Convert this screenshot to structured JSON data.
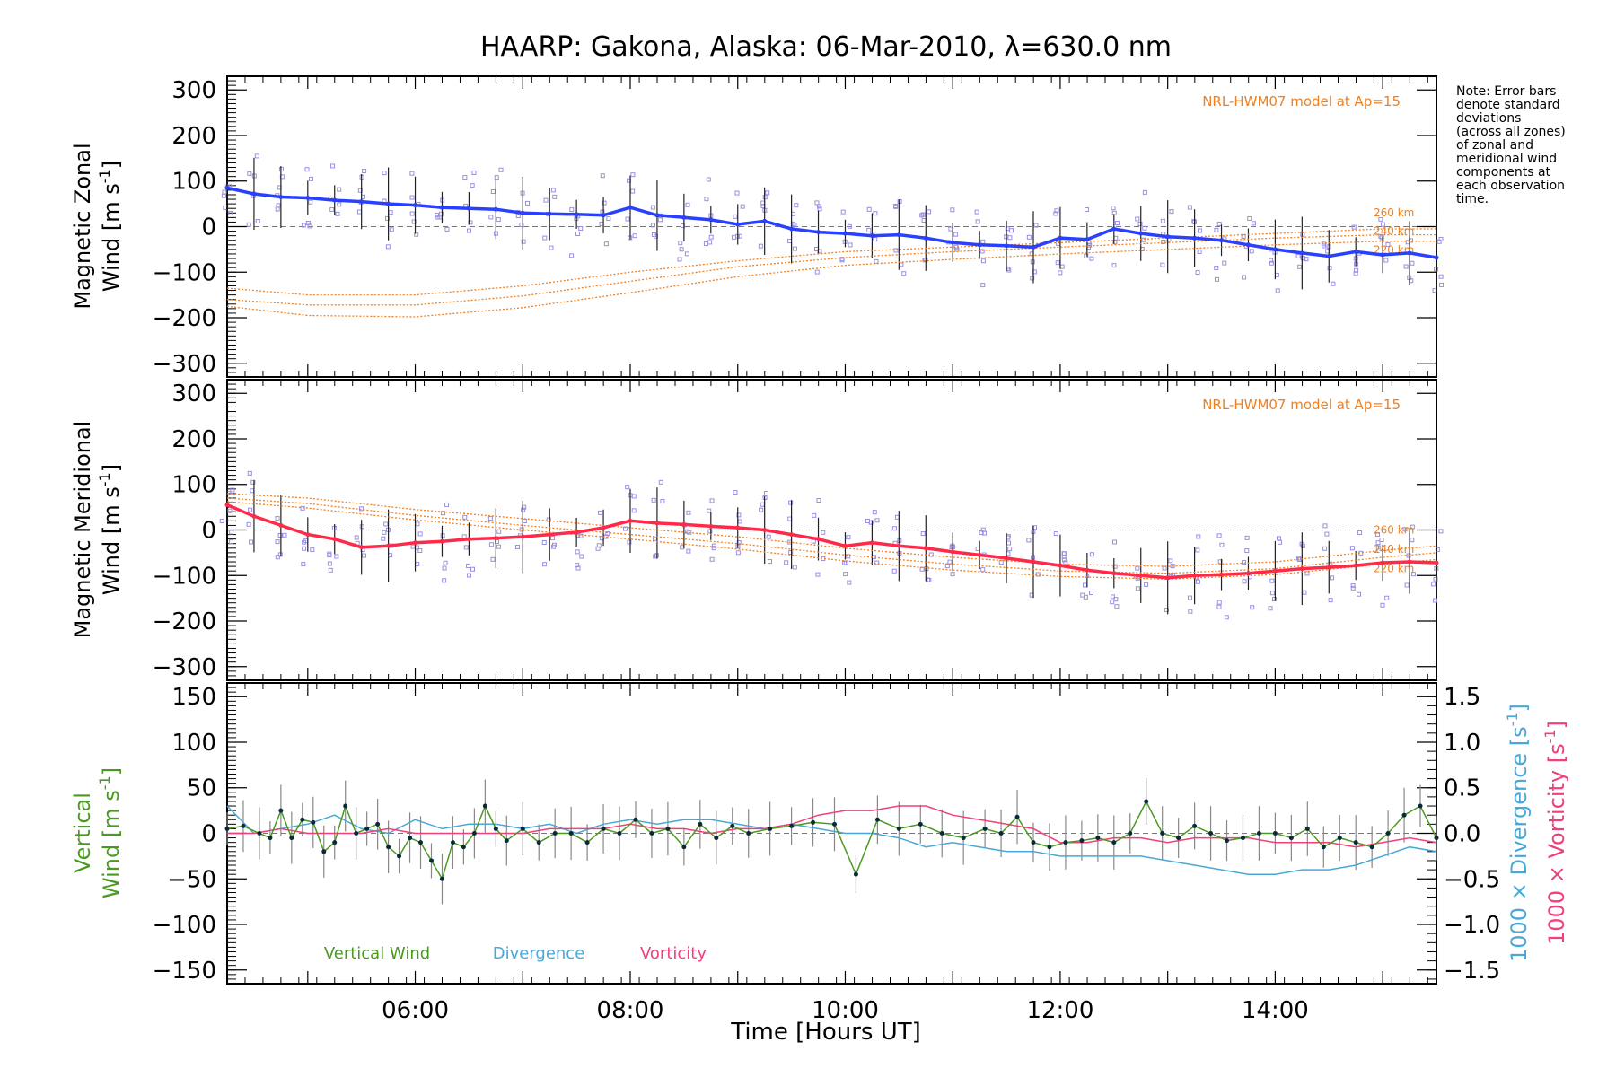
{
  "title": "HAARP: Gakona,  Alaska: 06-Mar-2010, λ=630.0 nm",
  "xlabel": "Time [Hours UT]",
  "note_lines": [
    "Note: Error bars",
    "denote standard",
    "deviations",
    "(across all zones)",
    "of zonal and",
    "meridional wind",
    "components at",
    "each observation",
    "time."
  ],
  "colors": {
    "zonal_line": "#2a40ff",
    "meridional_line": "#ff2a4a",
    "vertical": "#4a9a20",
    "divergence": "#4aa8d8",
    "vorticity": "#f0407a",
    "model": "#f08020",
    "scatter": "#9890e0"
  },
  "chart_data": [
    {
      "type": "line",
      "panel": "zonal",
      "ylabel_line1": "Magnetic Zonal",
      "ylabel_line2": "Wind [m s",
      "ylabel_sup": "-1",
      "ylabel_close": "]",
      "model_label": "NRL-HWM07 model at Ap=15",
      "altitude_labels": [
        "260 km",
        "240 km",
        "220 km"
      ],
      "xlim": [
        4.25,
        15.5
      ],
      "ylim": [
        -330,
        330
      ],
      "yticks": [
        -300,
        -200,
        -100,
        0,
        100,
        200,
        300
      ],
      "series": [
        {
          "kind": "mean",
          "x": [
            4.25,
            4.5,
            4.75,
            5.0,
            5.25,
            5.5,
            5.75,
            6.0,
            6.25,
            6.5,
            6.75,
            7.0,
            7.25,
            7.5,
            7.75,
            8.0,
            8.25,
            8.5,
            8.75,
            9.0,
            9.25,
            9.5,
            9.75,
            10.0,
            10.25,
            10.5,
            10.75,
            11.0,
            11.25,
            11.5,
            11.75,
            12.0,
            12.25,
            12.5,
            12.75,
            13.0,
            13.25,
            13.5,
            13.75,
            14.0,
            14.25,
            14.5,
            14.75,
            15.0,
            15.25,
            15.5
          ],
          "values": [
            85,
            72,
            65,
            63,
            58,
            55,
            50,
            47,
            42,
            40,
            38,
            30,
            28,
            27,
            25,
            42,
            25,
            20,
            15,
            5,
            12,
            -5,
            -12,
            -15,
            -20,
            -18,
            -25,
            -35,
            -40,
            -42,
            -45,
            -25,
            -28,
            -5,
            -15,
            -22,
            -25,
            -30,
            -40,
            -50,
            -58,
            -65,
            -55,
            -62,
            -58,
            -68
          ]
        },
        {
          "kind": "model",
          "label": "260 km",
          "x": [
            4.25,
            5.0,
            6.0,
            7.0,
            8.0,
            9.0,
            10.0,
            11.0,
            12.0,
            13.0,
            14.0,
            15.0,
            15.5
          ],
          "values": [
            -135,
            -150,
            -150,
            -130,
            -100,
            -75,
            -55,
            -45,
            -35,
            -25,
            -15,
            -5,
            -5
          ]
        },
        {
          "kind": "model",
          "label": "240 km",
          "x": [
            4.25,
            5.0,
            6.0,
            7.0,
            8.0,
            9.0,
            10.0,
            11.0,
            12.0,
            13.0,
            14.0,
            15.0,
            15.5
          ],
          "values": [
            -160,
            -172,
            -172,
            -152,
            -120,
            -88,
            -68,
            -55,
            -45,
            -35,
            -25,
            -18,
            -18
          ]
        },
        {
          "kind": "model",
          "label": "220 km",
          "x": [
            4.25,
            5.0,
            6.0,
            7.0,
            8.0,
            9.0,
            10.0,
            11.0,
            12.0,
            13.0,
            14.0,
            15.0,
            15.5
          ],
          "values": [
            -175,
            -195,
            -198,
            -178,
            -145,
            -110,
            -85,
            -72,
            -60,
            -50,
            -40,
            -32,
            -32
          ]
        }
      ]
    },
    {
      "type": "line",
      "panel": "meridional",
      "ylabel_line1": "Magnetic Meridional",
      "ylabel_line2": "Wind [m s",
      "ylabel_sup": "-1",
      "ylabel_close": "]",
      "model_label": "NRL-HWM07 model at Ap=15",
      "altitude_labels": [
        "260 km",
        "240 km",
        "220 km"
      ],
      "xlim": [
        4.25,
        15.5
      ],
      "ylim": [
        -330,
        330
      ],
      "yticks": [
        -300,
        -200,
        -100,
        0,
        100,
        200,
        300
      ],
      "series": [
        {
          "kind": "mean",
          "x": [
            4.25,
            4.5,
            4.75,
            5.0,
            5.25,
            5.5,
            5.75,
            6.0,
            6.25,
            6.5,
            6.75,
            7.0,
            7.25,
            7.5,
            7.75,
            8.0,
            8.25,
            8.5,
            8.75,
            9.0,
            9.25,
            9.5,
            9.75,
            10.0,
            10.25,
            10.5,
            10.75,
            11.0,
            11.25,
            11.5,
            11.75,
            12.0,
            12.25,
            12.5,
            12.75,
            13.0,
            13.25,
            13.5,
            13.75,
            14.0,
            14.25,
            14.5,
            14.75,
            15.0,
            15.25,
            15.5
          ],
          "values": [
            55,
            30,
            10,
            -10,
            -20,
            -38,
            -35,
            -28,
            -25,
            -20,
            -18,
            -15,
            -10,
            -5,
            5,
            20,
            15,
            12,
            8,
            5,
            0,
            -10,
            -20,
            -35,
            -28,
            -35,
            -40,
            -48,
            -55,
            -62,
            -70,
            -78,
            -88,
            -95,
            -100,
            -105,
            -100,
            -98,
            -95,
            -90,
            -85,
            -82,
            -78,
            -72,
            -70,
            -72
          ]
        },
        {
          "kind": "model",
          "label": "260 km",
          "x": [
            4.25,
            5.0,
            6.0,
            7.0,
            8.0,
            9.0,
            10.0,
            11.0,
            12.0,
            13.0,
            14.0,
            15.0,
            15.5
          ],
          "values": [
            80,
            70,
            45,
            25,
            5,
            -15,
            -40,
            -60,
            -75,
            -80,
            -70,
            -45,
            -35
          ]
        },
        {
          "kind": "model",
          "label": "240 km",
          "x": [
            4.25,
            5.0,
            6.0,
            7.0,
            8.0,
            9.0,
            10.0,
            11.0,
            12.0,
            13.0,
            14.0,
            15.0,
            15.5
          ],
          "values": [
            70,
            58,
            32,
            10,
            -10,
            -30,
            -55,
            -75,
            -90,
            -95,
            -85,
            -60,
            -50
          ]
        },
        {
          "kind": "model",
          "label": "220 km",
          "x": [
            4.25,
            5.0,
            6.0,
            7.0,
            8.0,
            9.0,
            10.0,
            11.0,
            12.0,
            13.0,
            14.0,
            15.0,
            15.5
          ],
          "values": [
            62,
            48,
            22,
            0,
            -20,
            -42,
            -68,
            -88,
            -102,
            -108,
            -98,
            -75,
            -65
          ]
        }
      ]
    },
    {
      "type": "line",
      "panel": "vertical",
      "ylabel_line1": "Vertical",
      "ylabel_line2": "Wind [m s",
      "ylabel_sup": "-1",
      "ylabel_close": "]",
      "y2label_divergence": "1000 × Divergence [s",
      "y2label_vorticity": "1000 × Vorticity [s",
      "y2label_sup": "-1",
      "y2label_close": "]",
      "legend": [
        "Vertical Wind",
        "Divergence",
        "Vorticity"
      ],
      "xticks": [
        "06:00",
        "08:00",
        "10:00",
        "12:00",
        "14:00"
      ],
      "xtick_values": [
        6,
        8,
        10,
        12,
        14
      ],
      "xlim": [
        4.25,
        15.5
      ],
      "ylim": [
        -165,
        165
      ],
      "yticks": [
        -150,
        -100,
        -50,
        0,
        50,
        100,
        150
      ],
      "y2lim": [
        -1.65,
        1.65
      ],
      "y2ticks": [
        -1.5,
        -1.0,
        -0.5,
        0.0,
        0.5,
        1.0,
        1.5
      ],
      "y2ticklabels": [
        "−1.5",
        "−1.0",
        "−0.5",
        "0.0",
        "0.5",
        "1.0",
        "1.5"
      ],
      "series": [
        {
          "name": "Vertical Wind",
          "x": [
            4.25,
            4.4,
            4.55,
            4.65,
            4.75,
            4.85,
            4.95,
            5.05,
            5.15,
            5.25,
            5.35,
            5.45,
            5.55,
            5.65,
            5.75,
            5.85,
            5.95,
            6.05,
            6.15,
            6.25,
            6.35,
            6.45,
            6.55,
            6.65,
            6.75,
            6.85,
            7.0,
            7.15,
            7.3,
            7.45,
            7.6,
            7.75,
            7.9,
            8.05,
            8.2,
            8.35,
            8.5,
            8.65,
            8.8,
            8.95,
            9.1,
            9.3,
            9.5,
            9.7,
            9.9,
            10.1,
            10.3,
            10.5,
            10.7,
            10.9,
            11.1,
            11.3,
            11.45,
            11.6,
            11.75,
            11.9,
            12.05,
            12.2,
            12.35,
            12.5,
            12.65,
            12.8,
            12.95,
            13.1,
            13.25,
            13.4,
            13.55,
            13.7,
            13.85,
            14.0,
            14.15,
            14.3,
            14.45,
            14.6,
            14.75,
            14.9,
            15.05,
            15.2,
            15.35,
            15.5
          ],
          "values": [
            5,
            8,
            0,
            -5,
            25,
            -5,
            15,
            12,
            -20,
            -10,
            30,
            0,
            5,
            10,
            -15,
            -25,
            -5,
            -10,
            -30,
            -50,
            -10,
            -15,
            0,
            30,
            5,
            -8,
            5,
            -10,
            0,
            0,
            -10,
            5,
            0,
            15,
            0,
            5,
            -15,
            10,
            -5,
            8,
            0,
            5,
            8,
            12,
            10,
            -45,
            15,
            5,
            10,
            0,
            -5,
            5,
            0,
            18,
            -10,
            -15,
            -10,
            -8,
            -5,
            -10,
            0,
            35,
            0,
            -5,
            8,
            0,
            -8,
            -5,
            0,
            0,
            -5,
            5,
            -15,
            -5,
            -10,
            -15,
            0,
            20,
            30,
            -5
          ]
        },
        {
          "name": "Divergence",
          "x": [
            4.25,
            4.5,
            4.75,
            5.0,
            5.25,
            5.5,
            5.75,
            6.0,
            6.25,
            6.5,
            6.75,
            7.0,
            7.25,
            7.5,
            7.75,
            8.0,
            8.25,
            8.5,
            8.75,
            9.0,
            9.25,
            9.5,
            9.75,
            10.0,
            10.25,
            10.5,
            10.75,
            11.0,
            11.25,
            11.5,
            11.75,
            12.0,
            12.25,
            12.5,
            12.75,
            13.0,
            13.25,
            13.5,
            13.75,
            14.0,
            14.25,
            14.5,
            14.75,
            15.0,
            15.25,
            15.5
          ],
          "values": [
            0.3,
            0.0,
            0.05,
            0.1,
            0.2,
            0.05,
            0.0,
            0.15,
            0.05,
            0.1,
            0.1,
            0.05,
            0.1,
            0.0,
            0.1,
            0.15,
            0.1,
            0.15,
            0.15,
            0.1,
            0.05,
            0.1,
            0.05,
            0.0,
            0.0,
            -0.05,
            -0.15,
            -0.1,
            -0.15,
            -0.2,
            -0.2,
            -0.25,
            -0.25,
            -0.25,
            -0.25,
            -0.3,
            -0.35,
            -0.4,
            -0.45,
            -0.45,
            -0.4,
            -0.4,
            -0.35,
            -0.25,
            -0.15,
            -0.2
          ]
        },
        {
          "name": "Vorticity",
          "x": [
            4.25,
            4.5,
            4.75,
            5.0,
            5.25,
            5.5,
            5.75,
            6.0,
            6.25,
            6.5,
            6.75,
            7.0,
            7.25,
            7.5,
            7.75,
            8.0,
            8.25,
            8.5,
            8.75,
            9.0,
            9.25,
            9.5,
            9.75,
            10.0,
            10.25,
            10.5,
            10.75,
            11.0,
            11.25,
            11.5,
            11.75,
            12.0,
            12.25,
            12.5,
            12.75,
            13.0,
            13.25,
            13.5,
            13.75,
            14.0,
            14.25,
            14.5,
            14.75,
            15.0,
            15.25,
            15.5
          ],
          "values": [
            0.0,
            0.0,
            0.05,
            0.0,
            0.0,
            0.0,
            0.05,
            0.0,
            0.0,
            0.0,
            0.0,
            0.0,
            0.05,
            0.05,
            0.05,
            0.1,
            0.05,
            0.05,
            0.0,
            0.05,
            0.05,
            0.1,
            0.2,
            0.25,
            0.25,
            0.3,
            0.3,
            0.2,
            0.15,
            0.1,
            0.05,
            -0.1,
            -0.1,
            -0.05,
            -0.05,
            -0.1,
            -0.05,
            -0.05,
            -0.05,
            -0.1,
            -0.1,
            -0.1,
            -0.15,
            -0.1,
            -0.05,
            -0.1
          ]
        }
      ]
    }
  ]
}
